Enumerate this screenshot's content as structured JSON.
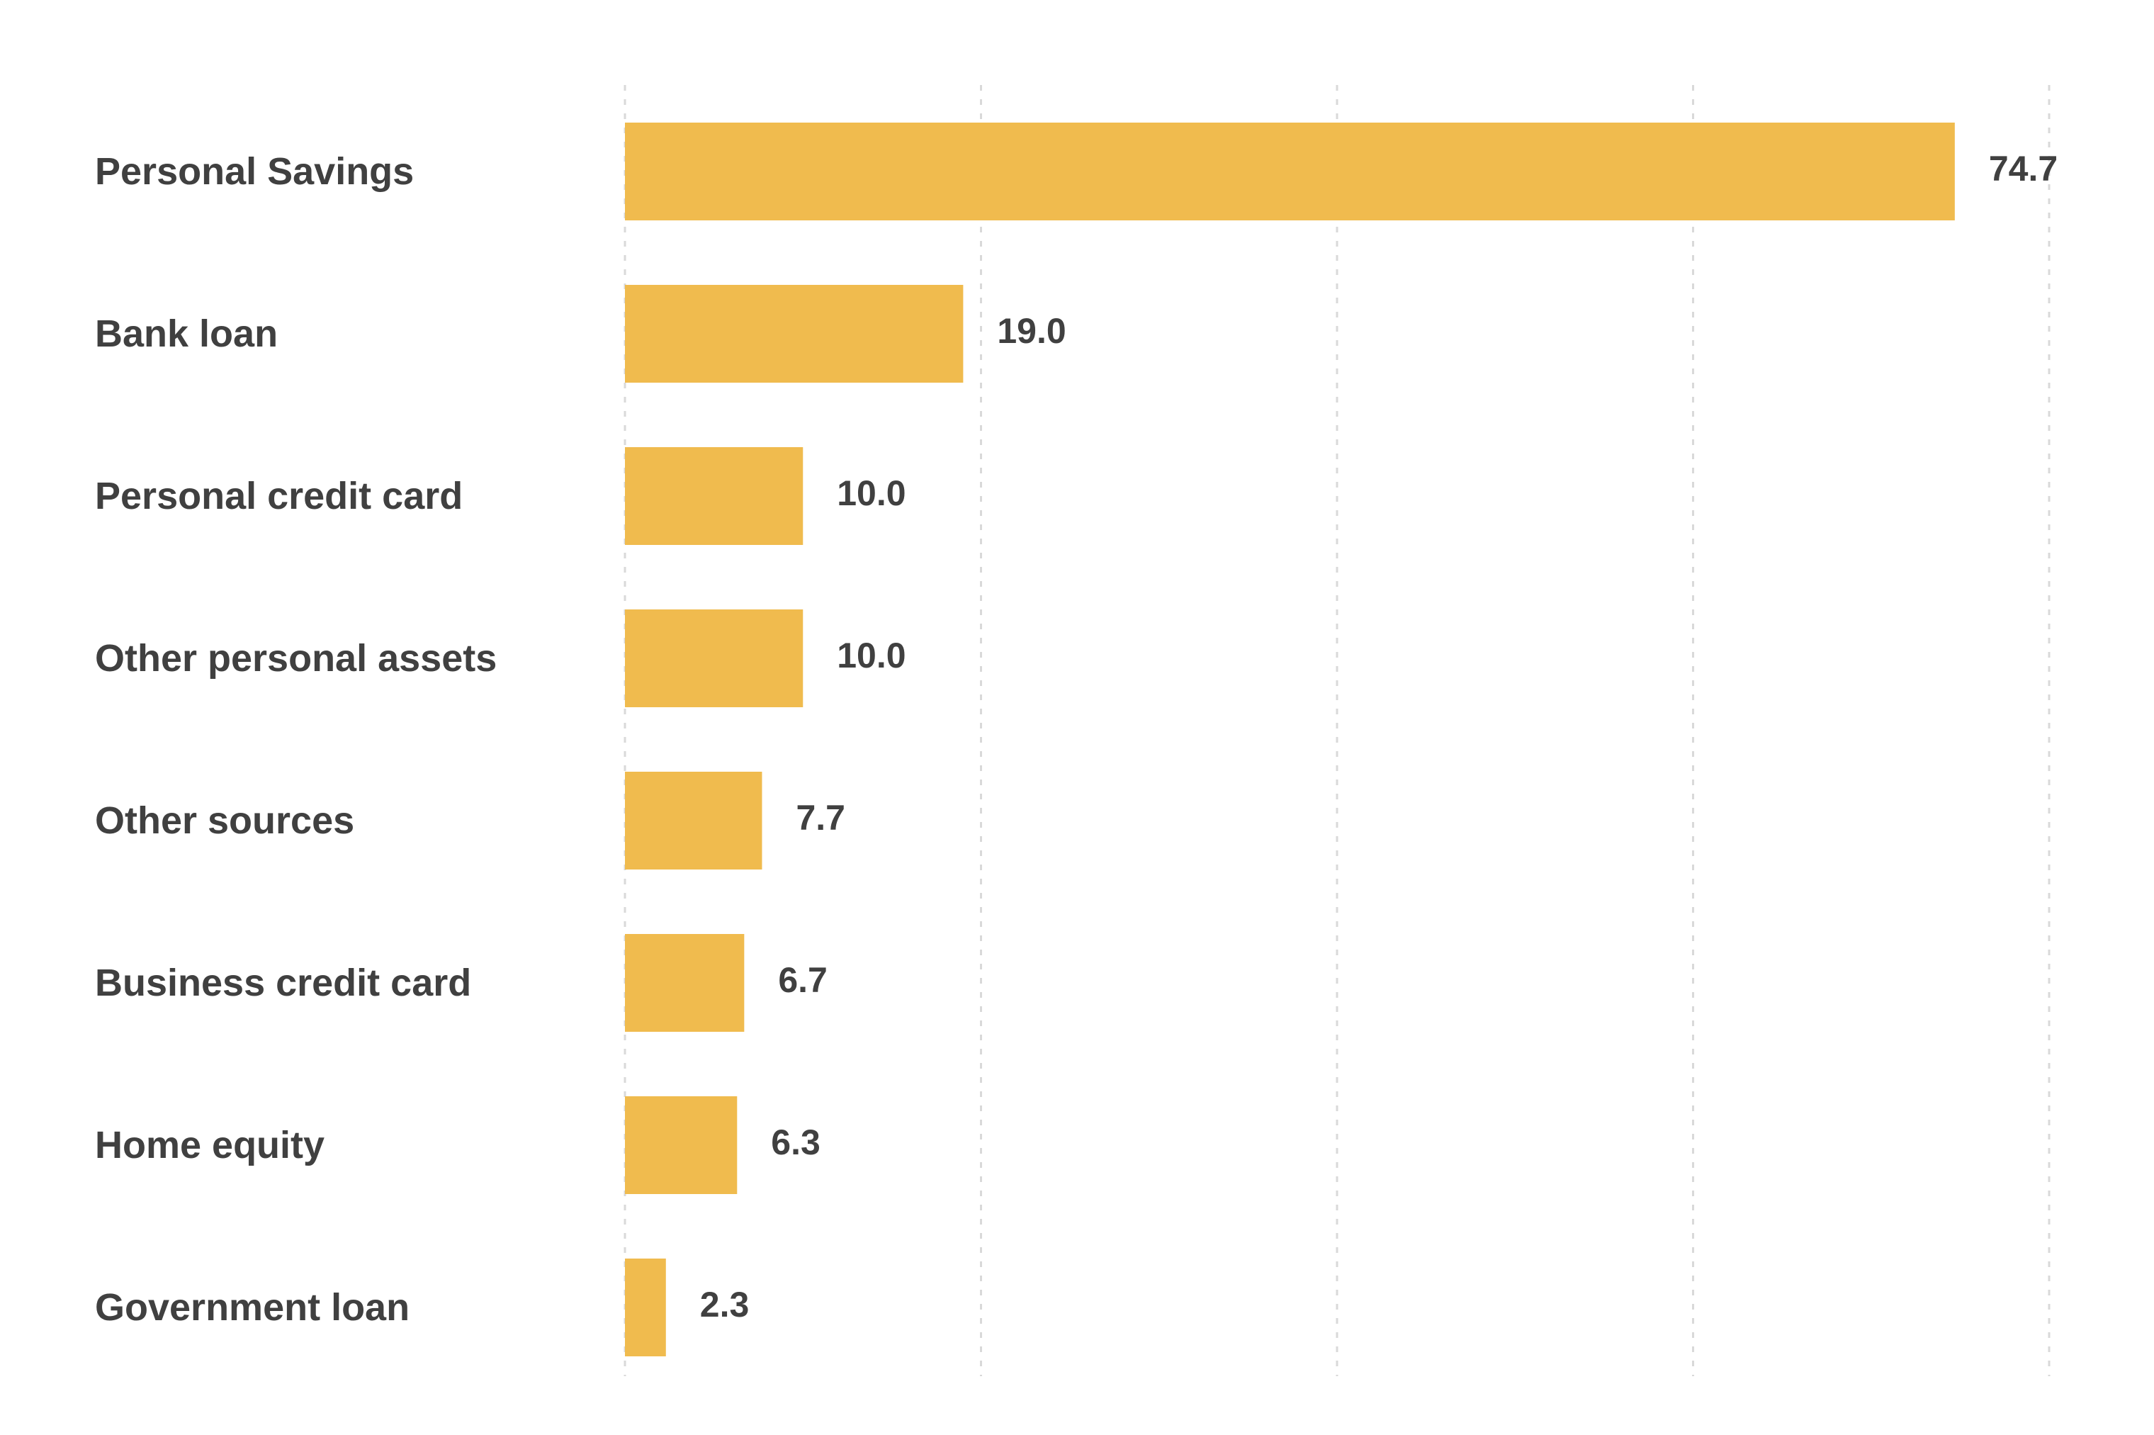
{
  "chart_data": {
    "type": "bar",
    "orientation": "horizontal",
    "categories": [
      "Personal Savings",
      "Bank loan",
      "Personal credit card",
      "Other personal assets",
      "Other sources",
      "Business credit card",
      "Home equity",
      "Government loan"
    ],
    "values": [
      74.7,
      19.0,
      10.0,
      10.0,
      7.7,
      6.7,
      6.3,
      2.3
    ],
    "value_labels": [
      "74.7",
      "19.0",
      "10.0",
      "10.0",
      "7.7",
      "6.7",
      "6.3",
      "2.3"
    ],
    "xlim": [
      0,
      80
    ],
    "x_gridlines": [
      0,
      20,
      40,
      60,
      80
    ],
    "grid": "vertical dashed",
    "title": "",
    "xlabel": "",
    "ylabel": "",
    "colors": {
      "bar": "#F0BB4E",
      "label_text": "#404040",
      "gridline": "#D9D9D9",
      "background": "#FFFFFF"
    }
  }
}
